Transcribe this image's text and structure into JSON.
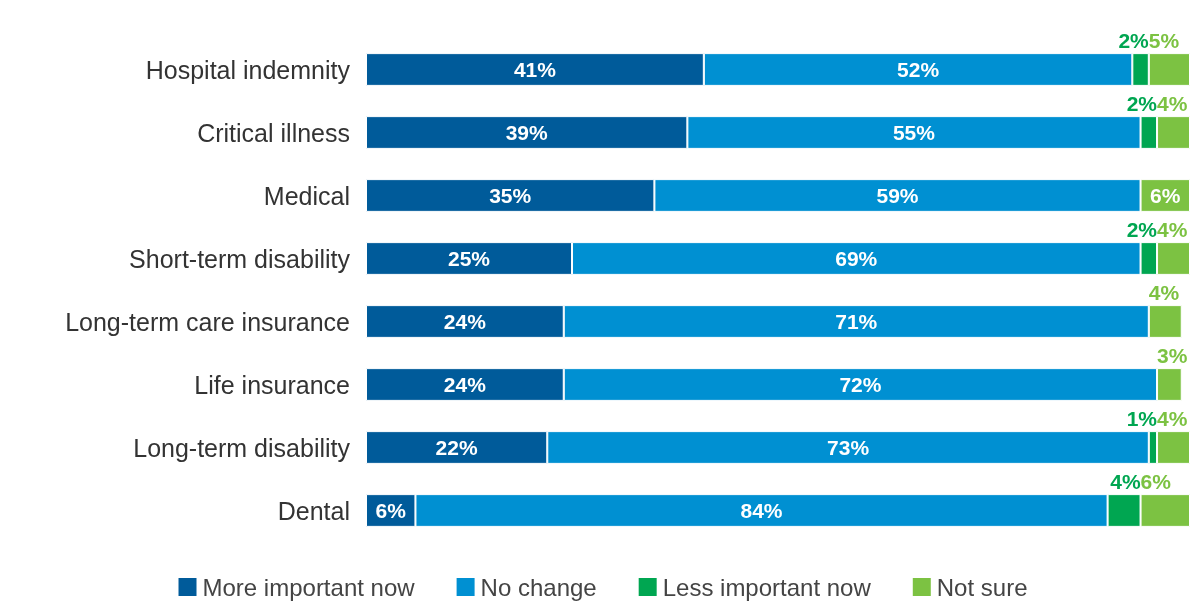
{
  "chart_data": {
    "type": "bar",
    "orientation": "horizontal",
    "stacked": true,
    "categories": [
      "Hospital indemnity",
      "Critical illness",
      "Medical",
      "Short-term disability",
      "Long-term care insurance",
      "Life insurance",
      "Long-term disability",
      "Dental"
    ],
    "xlim": [
      0,
      100
    ],
    "tick_labels": "y",
    "legend": "bottom",
    "series": [
      {
        "name": "More important now",
        "color": "#005b9a",
        "values": [
          41,
          39,
          35,
          25,
          24,
          24,
          22,
          6
        ],
        "value_labels": [
          "41%",
          "39%",
          "35%",
          "25%",
          "24%",
          "24%",
          "22%",
          "6%"
        ]
      },
      {
        "name": "No change",
        "color": "#0090d2",
        "values": [
          52,
          55,
          59,
          69,
          71,
          72,
          73,
          84
        ],
        "value_labels": [
          "52%",
          "55%",
          "59%",
          "69%",
          "71%",
          "72%",
          "73%",
          "84%"
        ]
      },
      {
        "name": "Less important now",
        "color": "#00a651",
        "values": [
          2,
          2,
          null,
          2,
          null,
          null,
          1,
          4
        ],
        "value_labels": [
          "2%",
          "2%",
          null,
          "2%",
          null,
          null,
          "1%",
          "4%"
        ]
      },
      {
        "name": "Not sure",
        "color": "#7cc242",
        "values": [
          5,
          4,
          6,
          4,
          4,
          3,
          4,
          6
        ],
        "value_labels": [
          "5%",
          "4%",
          "6%",
          "4%",
          "4%",
          "3%",
          "4%",
          "6%"
        ]
      }
    ]
  }
}
